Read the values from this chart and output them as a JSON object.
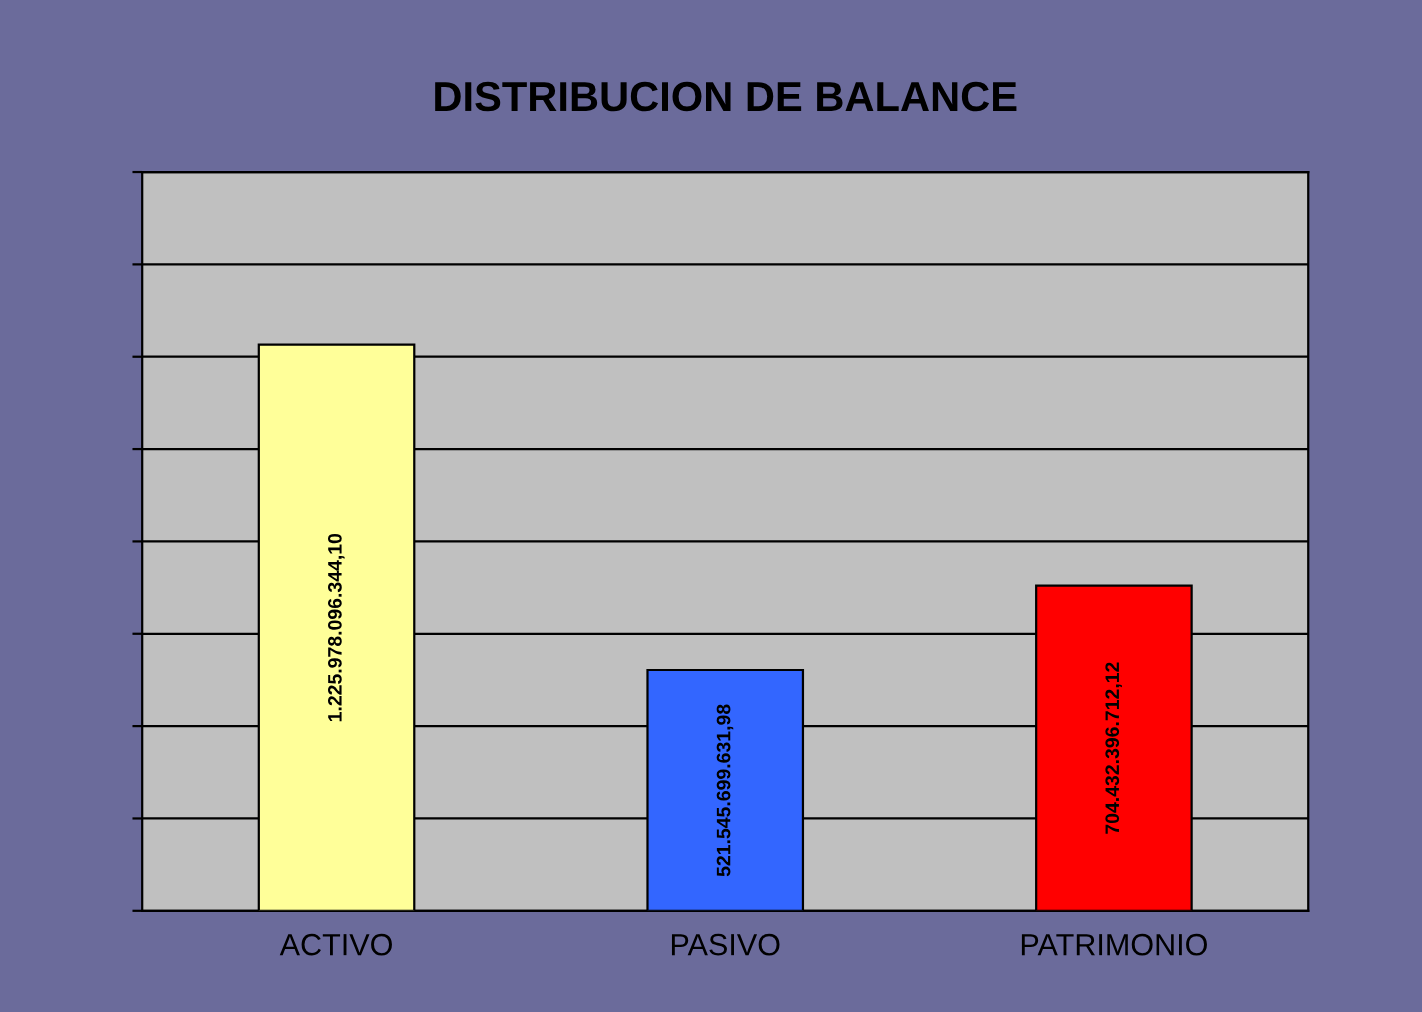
{
  "chart_data": {
    "type": "bar",
    "title": "DISTRIBUCION DE BALANCE",
    "categories": [
      "ACTIVO",
      "PASIVO",
      "PATRIMONIO"
    ],
    "values": [
      1225978096344.1,
      521545699631.98,
      704432396712.12
    ],
    "colors": [
      "#ffff99",
      "#3366ff",
      "#ff0000"
    ],
    "value_labels": [
      "1.225.978.096.344,10",
      "521.545.699.631,98",
      "704.432.396.712,12"
    ],
    "ylim": [
      0,
      1600000000000
    ],
    "yticks": [
      {
        "value": 0,
        "label": null
      },
      {
        "value": 200000000000,
        "label": null
      },
      {
        "value": 400000000000,
        "label": null
      },
      {
        "value": 600000000000,
        "label": null
      },
      {
        "value": 800000000000,
        "label": null
      },
      {
        "value": 1000000000000,
        "label": null
      },
      {
        "value": 1200000000000,
        "label": null
      },
      {
        "value": 1400000000000,
        "label": null
      },
      {
        "value": 1600000000000,
        "label": null
      }
    ],
    "grid": "y",
    "tick_labels": "x"
  }
}
